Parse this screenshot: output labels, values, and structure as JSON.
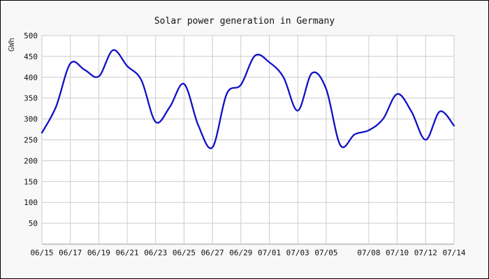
{
  "chart_data": {
    "type": "line",
    "title": "Solar power generation in Germany",
    "ylabel": "GWh",
    "xlabel": "",
    "ylim": [
      0,
      500
    ],
    "yticks": [
      50,
      100,
      150,
      200,
      250,
      300,
      350,
      400,
      450,
      500
    ],
    "xlim": [
      "06/15",
      "07/14"
    ],
    "xtick_labels": [
      "06/15",
      "06/17",
      "06/19",
      "06/21",
      "06/23",
      "06/25",
      "06/27",
      "06/29",
      "07/01",
      "07/03",
      "07/05",
      "07/08",
      "07/10",
      "07/12",
      "07/14"
    ],
    "grid": true,
    "series": [
      {
        "color": "#1010c8",
        "x": [
          "06/15",
          "06/16",
          "06/17",
          "06/18",
          "06/19",
          "06/20",
          "06/21",
          "06/22",
          "06/23",
          "06/24",
          "06/25",
          "06/26",
          "06/27",
          "06/28",
          "06/29",
          "06/30",
          "07/01",
          "07/02",
          "07/03",
          "07/04",
          "07/05",
          "07/06",
          "07/07",
          "07/08",
          "07/09",
          "07/10",
          "07/11",
          "07/12",
          "07/13",
          "07/14"
        ],
        "values": [
          267,
          330,
          433,
          418,
          402,
          465,
          427,
          393,
          293,
          329,
          384,
          285,
          232,
          360,
          382,
          452,
          436,
          400,
          320,
          410,
          372,
          237,
          263,
          273,
          300,
          360,
          318,
          250,
          318,
          284
        ]
      }
    ]
  }
}
